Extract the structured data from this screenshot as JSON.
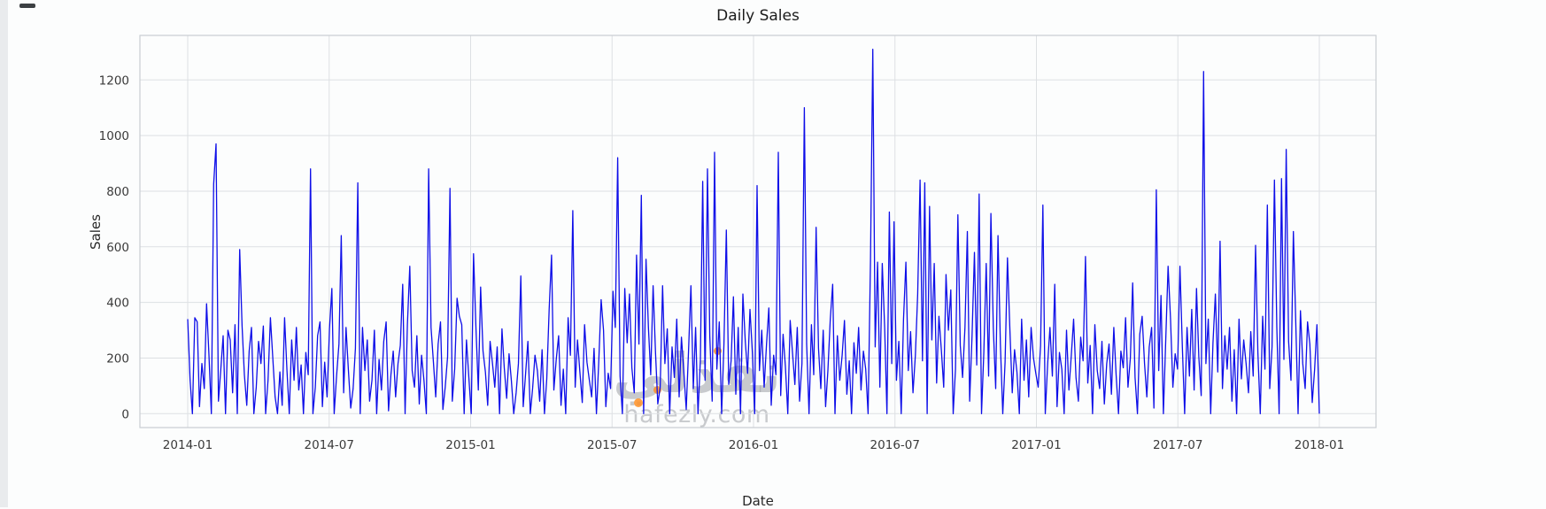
{
  "watermark": {
    "arabic": "نفذلي",
    "latin": "hafezly.com",
    "dot_color": "#ff9124"
  },
  "chart_data": {
    "type": "line",
    "title": "Daily Sales",
    "xlabel": "Date",
    "ylabel": "Sales",
    "series_name": "Sales",
    "series_color": "#0e0ee8",
    "grid": true,
    "legend": false,
    "x_tick_labels": [
      "2014-01",
      "2014-07",
      "2015-01",
      "2015-07",
      "2016-01",
      "2016-07",
      "2017-01",
      "2017-07",
      "2018-01"
    ],
    "y_ticks": [
      0,
      200,
      400,
      600,
      800,
      1000,
      1200
    ],
    "ylim": [
      -50,
      1360
    ],
    "values": [
      340,
      120,
      0,
      345,
      330,
      25,
      180,
      90,
      395,
      210,
      0,
      825,
      970,
      45,
      160,
      280,
      0,
      300,
      265,
      75,
      320,
      0,
      590,
      315,
      140,
      30,
      225,
      310,
      0,
      95,
      260,
      180,
      315,
      0,
      120,
      345,
      200,
      60,
      0,
      150,
      30,
      345,
      155,
      0,
      265,
      120,
      310,
      85,
      175,
      0,
      220,
      140,
      880,
      0,
      95,
      280,
      330,
      25,
      185,
      60,
      305,
      450,
      0,
      135,
      250,
      640,
      75,
      310,
      160,
      20,
      90,
      235,
      830,
      0,
      310,
      155,
      265,
      45,
      120,
      300,
      0,
      195,
      85,
      260,
      330,
      10,
      140,
      225,
      60,
      180,
      245,
      465,
      0,
      320,
      530,
      155,
      95,
      280,
      35,
      210,
      120,
      0,
      880,
      310,
      185,
      60,
      250,
      330,
      15,
      95,
      205,
      810,
      45,
      160,
      415,
      350,
      320,
      0,
      265,
      130,
      0,
      575,
      310,
      85,
      455,
      225,
      150,
      30,
      260,
      180,
      95,
      240,
      0,
      305,
      165,
      55,
      215,
      120,
      0,
      75,
      180,
      495,
      25,
      140,
      260,
      0,
      90,
      210,
      155,
      45,
      230,
      0,
      125,
      375,
      570,
      85,
      195,
      280,
      30,
      160,
      0,
      345,
      210,
      730,
      95,
      265,
      150,
      40,
      320,
      185,
      120,
      60,
      235,
      0,
      185,
      410,
      300,
      25,
      145,
      90,
      440,
      310,
      920,
      135,
      0,
      450,
      255,
      430,
      165,
      75,
      570,
      250,
      785,
      0,
      555,
      310,
      140,
      460,
      220,
      35,
      95,
      460,
      180,
      305,
      0,
      240,
      130,
      340,
      60,
      275,
      150,
      15,
      225,
      460,
      90,
      310,
      0,
      195,
      835,
      120,
      880,
      280,
      45,
      940,
      160,
      330,
      0,
      250,
      660,
      105,
      190,
      420,
      70,
      310,
      0,
      430,
      260,
      145,
      375,
      220,
      0,
      820,
      155,
      300,
      95,
      250,
      380,
      30,
      210,
      140,
      940,
      65,
      285,
      170,
      0,
      335,
      220,
      105,
      310,
      45,
      180,
      1100,
      250,
      0,
      320,
      140,
      670,
      235,
      90,
      300,
      25,
      155,
      340,
      465,
      0,
      280,
      120,
      210,
      335,
      70,
      190,
      0,
      255,
      145,
      310,
      85,
      225,
      160,
      0,
      550,
      1310,
      240,
      545,
      95,
      540,
      310,
      0,
      725,
      180,
      690,
      120,
      260,
      0,
      340,
      545,
      155,
      295,
      75,
      210,
      430,
      840,
      190,
      830,
      0,
      745,
      265,
      540,
      110,
      350,
      230,
      95,
      500,
      300,
      445,
      0,
      160,
      715,
      245,
      130,
      310,
      655,
      45,
      280,
      580,
      175,
      790,
      0,
      220,
      540,
      135,
      720,
      310,
      90,
      640,
      250,
      0,
      185,
      560,
      305,
      75,
      230,
      150,
      0,
      340,
      120,
      265,
      60,
      310,
      200,
      145,
      95,
      245,
      750,
      0,
      180,
      310,
      135,
      465,
      25,
      220,
      160,
      0,
      300,
      85,
      210,
      340,
      130,
      45,
      275,
      190,
      565,
      110,
      245,
      0,
      320,
      155,
      90,
      260,
      35,
      180,
      250,
      70,
      310,
      140,
      0,
      225,
      165,
      345,
      95,
      200,
      470,
      130,
      0,
      285,
      350,
      180,
      60,
      240,
      310,
      20,
      805,
      155,
      425,
      0,
      270,
      530,
      345,
      95,
      215,
      160,
      530,
      240,
      0,
      310,
      135,
      375,
      85,
      450,
      205,
      65,
      1230,
      180,
      340,
      0,
      255,
      430,
      150,
      620,
      90,
      280,
      160,
      310,
      45,
      230,
      0,
      340,
      125,
      265,
      180,
      75,
      295,
      135,
      605,
      220,
      0,
      350,
      160,
      750,
      90,
      240,
      840,
      310,
      0,
      845,
      195,
      950,
      260,
      120,
      655,
      340,
      0,
      370,
      180,
      90,
      330,
      250,
      40,
      160,
      320,
      0
    ]
  }
}
